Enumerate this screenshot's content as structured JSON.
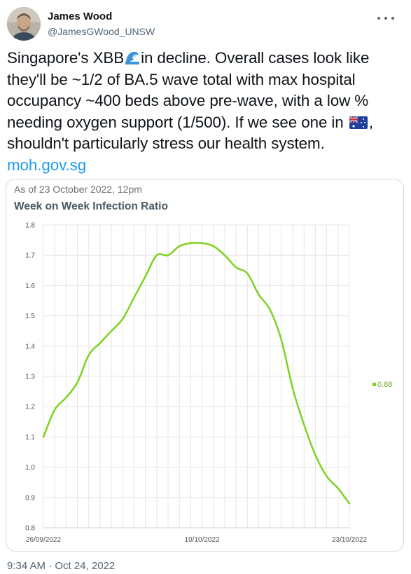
{
  "author": {
    "name": "James Wood",
    "handle": "@JamesGWood_UNSW"
  },
  "tweet": {
    "text_part1": "Singapore's XBB",
    "text_part2": "in decline. Overall cases look like they'll be ~1/2 of BA.5 wave total with max hospital occupancy ~400 beds above pre-wave, with a low % needing oxygen support (1/500). If we see one in ",
    "text_part3": ", shouldn't particularly stress our health system.",
    "link": "moh.gov.sg",
    "wave_emoji_icon": "water-wave-emoji",
    "flag_emoji_icon": "australia-flag-emoji",
    "timestamp": "9:34 AM · Oct 24, 2022"
  },
  "chart_card": {
    "as_of": "As of 23 October 2022, 12pm"
  },
  "chart_data": {
    "type": "line",
    "title": "Week on Week Infection Ratio",
    "xlabel": "",
    "ylabel": "",
    "x_ticks": [
      "26/09/2022",
      "10/10/2022",
      "23/10/2022"
    ],
    "ylim": [
      0.8,
      1.8
    ],
    "y_ticks": [
      "0.8",
      "0.9",
      "1.0",
      "1.1",
      "1.2",
      "1.3",
      "1.4",
      "1.5",
      "1.6",
      "1.7",
      "1.8"
    ],
    "grid": true,
    "legend_position": "right",
    "series": [
      {
        "name": "0.88",
        "color": "#7ed321",
        "x": [
          "26/09/2022",
          "27/09/2022",
          "28/09/2022",
          "29/09/2022",
          "30/09/2022",
          "01/10/2022",
          "02/10/2022",
          "03/10/2022",
          "04/10/2022",
          "05/10/2022",
          "06/10/2022",
          "07/10/2022",
          "08/10/2022",
          "09/10/2022",
          "10/10/2022",
          "11/10/2022",
          "12/10/2022",
          "13/10/2022",
          "14/10/2022",
          "15/10/2022",
          "16/10/2022",
          "17/10/2022",
          "18/10/2022",
          "19/10/2022",
          "20/10/2022",
          "21/10/2022",
          "22/10/2022",
          "23/10/2022"
        ],
        "values": [
          1.1,
          1.19,
          1.23,
          1.28,
          1.37,
          1.41,
          1.45,
          1.49,
          1.56,
          1.63,
          1.7,
          1.7,
          1.73,
          1.74,
          1.74,
          1.73,
          1.7,
          1.66,
          1.64,
          1.57,
          1.52,
          1.42,
          1.26,
          1.14,
          1.04,
          0.97,
          0.93,
          0.88
        ]
      }
    ]
  }
}
